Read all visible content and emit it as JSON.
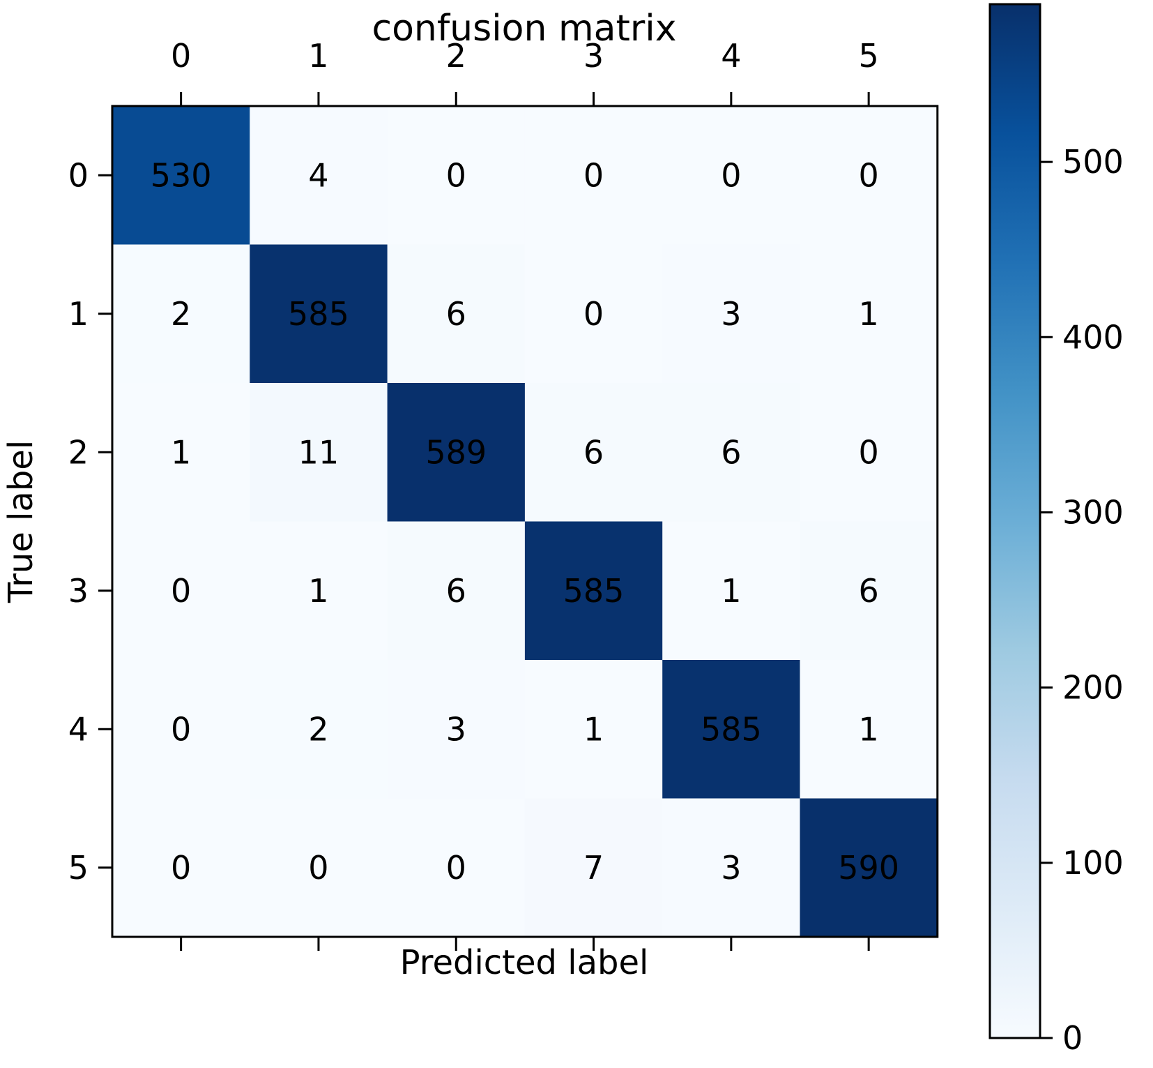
{
  "chart_data": {
    "type": "heatmap",
    "title": "confusion matrix",
    "xlabel": "Predicted label",
    "ylabel": "True label",
    "x_categories": [
      "0",
      "1",
      "2",
      "3",
      "4",
      "5"
    ],
    "y_categories": [
      "0",
      "1",
      "2",
      "3",
      "4",
      "5"
    ],
    "values": [
      [
        530,
        4,
        0,
        0,
        0,
        0
      ],
      [
        2,
        585,
        6,
        0,
        3,
        1
      ],
      [
        1,
        11,
        589,
        6,
        6,
        0
      ],
      [
        0,
        1,
        6,
        585,
        1,
        6
      ],
      [
        0,
        2,
        3,
        1,
        585,
        1
      ],
      [
        0,
        0,
        0,
        7,
        3,
        590
      ]
    ],
    "colormap": "Blues",
    "colormap_stops": [
      "#f7fbff",
      "#deebf7",
      "#c6dbef",
      "#9ecae1",
      "#6baed6",
      "#4292c6",
      "#2171b5",
      "#08519c",
      "#08306b"
    ],
    "colorbar": {
      "range": [
        0,
        590
      ],
      "ticks": [
        0,
        100,
        200,
        300,
        400,
        500
      ],
      "tick_labels": [
        "0",
        "100",
        "200",
        "300",
        "400",
        "500"
      ]
    },
    "x_tick_position": "top",
    "legend": "colorbar-right",
    "grid": false
  }
}
